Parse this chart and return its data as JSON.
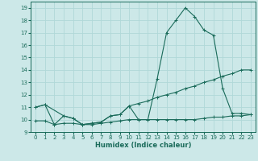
{
  "xlabel": "Humidex (Indice chaleur)",
  "xlim": [
    -0.5,
    23.5
  ],
  "ylim": [
    9,
    19.5
  ],
  "yticks": [
    9,
    10,
    11,
    12,
    13,
    14,
    15,
    16,
    17,
    18,
    19
  ],
  "xticks": [
    0,
    1,
    2,
    3,
    4,
    5,
    6,
    7,
    8,
    9,
    10,
    11,
    12,
    13,
    14,
    15,
    16,
    17,
    18,
    19,
    20,
    21,
    22,
    23
  ],
  "bg_color": "#cce8e8",
  "line_color": "#1a6b5a",
  "grid_color": "#b0d8d8",
  "line1_x": [
    0,
    1,
    2,
    3,
    4,
    5,
    6,
    7,
    8,
    9,
    10,
    11,
    12,
    13,
    14,
    15,
    16,
    17,
    18,
    19,
    20,
    21,
    22,
    23
  ],
  "line1_y": [
    11.0,
    11.2,
    9.6,
    10.3,
    10.1,
    9.6,
    9.7,
    9.8,
    10.3,
    10.4,
    11.1,
    10.0,
    10.0,
    13.3,
    17.0,
    18.0,
    19.0,
    18.3,
    17.2,
    16.8,
    12.5,
    10.5,
    10.5,
    10.4
  ],
  "line2_x": [
    0,
    1,
    3,
    4,
    5,
    6,
    7,
    8,
    9,
    10,
    11,
    12,
    13,
    14,
    15,
    16,
    17,
    18,
    19,
    20,
    21,
    22,
    23
  ],
  "line2_y": [
    11.0,
    11.2,
    10.3,
    10.1,
    9.6,
    9.7,
    9.8,
    10.3,
    10.4,
    11.1,
    11.3,
    11.5,
    11.8,
    12.0,
    12.2,
    12.5,
    12.7,
    13.0,
    13.2,
    13.5,
    13.7,
    14.0,
    14.0
  ],
  "line3_x": [
    0,
    1,
    2,
    3,
    4,
    5,
    6,
    7,
    8,
    9,
    10,
    11,
    12,
    13,
    14,
    15,
    16,
    17,
    18,
    19,
    20,
    21,
    22,
    23
  ],
  "line3_y": [
    9.9,
    9.9,
    9.6,
    9.7,
    9.7,
    9.6,
    9.6,
    9.7,
    9.8,
    9.9,
    10.0,
    10.0,
    10.0,
    10.0,
    10.0,
    10.0,
    10.0,
    10.0,
    10.1,
    10.2,
    10.2,
    10.3,
    10.3,
    10.4
  ]
}
